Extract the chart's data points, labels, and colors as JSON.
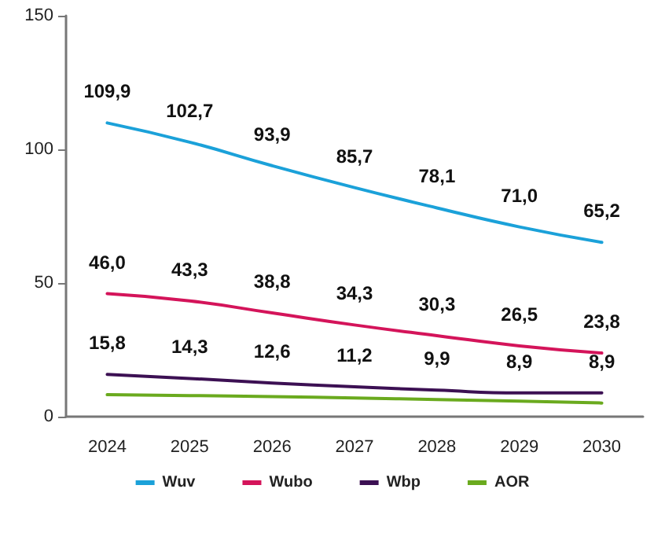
{
  "chart_data": {
    "type": "line",
    "categories": [
      "2024",
      "2025",
      "2026",
      "2027",
      "2028",
      "2029",
      "2030"
    ],
    "series": [
      {
        "name": "Wuv",
        "color": "#1ba1d9",
        "values": [
          109.9,
          102.7,
          93.9,
          85.7,
          78.1,
          71.0,
          65.2
        ],
        "value_labels": [
          "109,9",
          "102,7",
          "93,9",
          "85,7",
          "78,1",
          "71,0",
          "65,2"
        ]
      },
      {
        "name": "Wubo",
        "color": "#d4145a",
        "values": [
          46.0,
          43.3,
          38.8,
          34.3,
          30.3,
          26.5,
          23.8
        ],
        "value_labels": [
          "46,0",
          "43,3",
          "38,8",
          "34,3",
          "30,3",
          "26,5",
          "23,8"
        ]
      },
      {
        "name": "Wbp",
        "color": "#3c1053",
        "values": [
          15.8,
          14.3,
          12.6,
          11.2,
          9.9,
          8.9,
          8.9
        ],
        "value_labels": [
          "15,8",
          "14,3",
          "12,6",
          "11,2",
          "9,9",
          "8,9",
          "8,9"
        ]
      },
      {
        "name": "AOR",
        "color": "#6aaa1e",
        "values": [
          8.2,
          7.9,
          7.5,
          7.0,
          6.4,
          5.8,
          5.1
        ]
      }
    ],
    "ylim": [
      0,
      150
    ],
    "yticks": [
      0,
      50,
      100,
      150
    ],
    "grid": false,
    "legend": "bottom",
    "marker": "none",
    "line_style": "solid"
  }
}
